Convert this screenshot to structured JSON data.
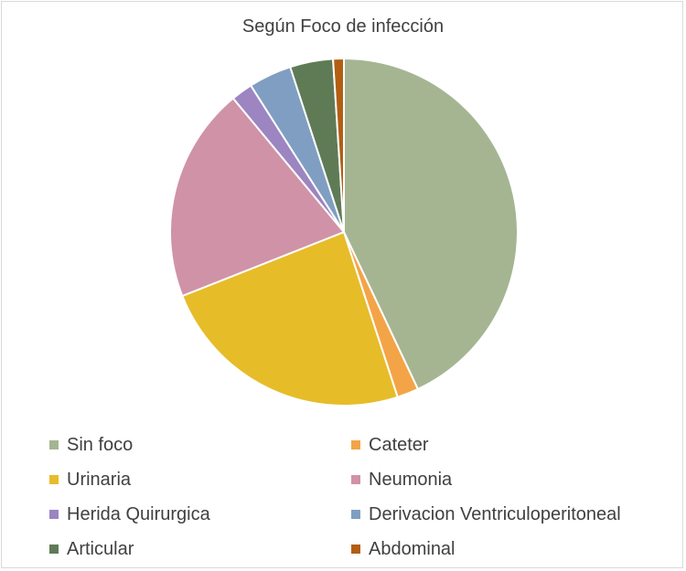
{
  "chart_data": {
    "type": "pie",
    "title": "Según Foco de infección",
    "legend_position": "bottom",
    "slices": [
      {
        "name": "Sin foco",
        "value": 43,
        "color": "#a5b592"
      },
      {
        "name": "Cateter",
        "value": 2,
        "color": "#f3a447"
      },
      {
        "name": "Urinaria",
        "value": 24,
        "color": "#e7bc29"
      },
      {
        "name": "Neumonia",
        "value": 20,
        "color": "#d092a7"
      },
      {
        "name": "Herida Quirurgica",
        "value": 2,
        "color": "#9c85c0"
      },
      {
        "name": "Derivacion Ventriculoperitoneal",
        "value": 4,
        "color": "#809ec2"
      },
      {
        "name": "Articular",
        "value": 4,
        "color": "#5f7b55"
      },
      {
        "name": "Abdominal",
        "value": 1,
        "color": "#b35e12"
      }
    ]
  }
}
